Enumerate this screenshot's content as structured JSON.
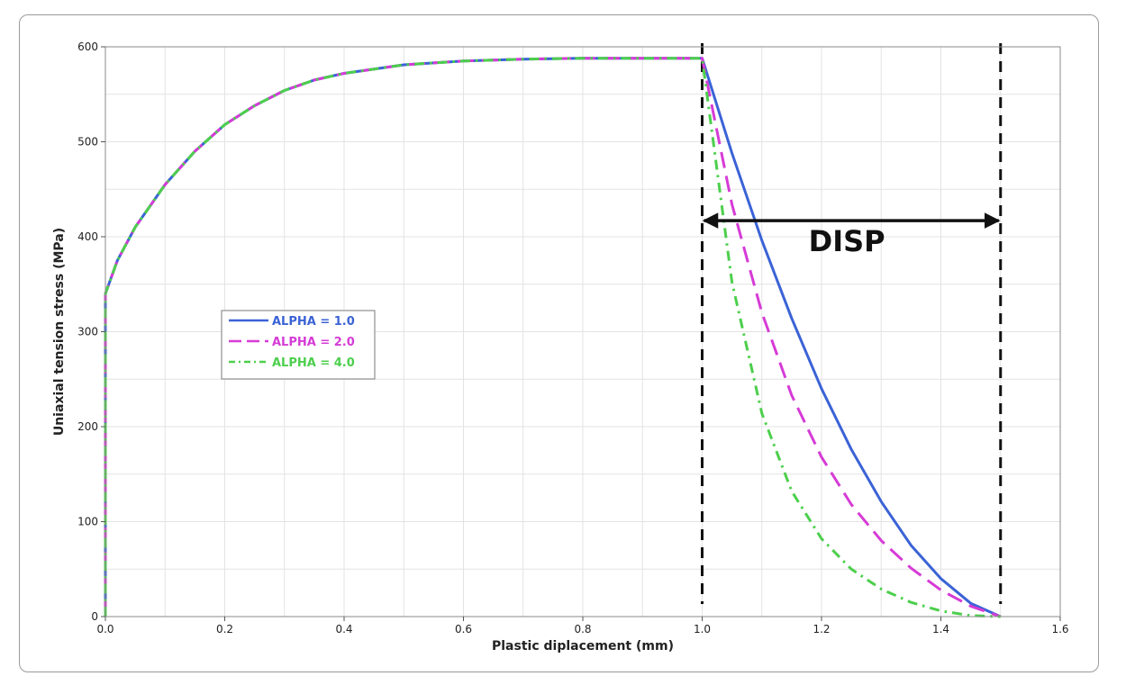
{
  "chart_data": {
    "type": "line",
    "title": "",
    "xlabel": "Plastic diplacement (mm)",
    "ylabel": "Uniaxial tension stress (MPa)",
    "xlim": [
      0,
      1.6
    ],
    "ylim": [
      0,
      600
    ],
    "x_ticks": [
      "0.0",
      "0.2",
      "0.4",
      "0.6",
      "0.8",
      "1.0",
      "1.2",
      "1.4",
      "1.6"
    ],
    "y_ticks": [
      "0",
      "100",
      "200",
      "300",
      "400",
      "500",
      "600"
    ],
    "grid": true,
    "legend_placement": "middle-left",
    "series": [
      {
        "name": "ALPHA = 1.0",
        "color": "#3b63d6",
        "dash": "solid",
        "x": [
          0,
          0,
          0.02,
          0.05,
          0.1,
          0.15,
          0.2,
          0.25,
          0.3,
          0.35,
          0.4,
          0.5,
          0.6,
          0.7,
          0.8,
          0.9,
          1.0,
          1.05,
          1.1,
          1.15,
          1.2,
          1.25,
          1.3,
          1.35,
          1.4,
          1.45,
          1.5
        ],
        "y": [
          0,
          340,
          375,
          410,
          455,
          490,
          518,
          538,
          554,
          565,
          572,
          581,
          585,
          587,
          588,
          588,
          588,
          488,
          396,
          314,
          240,
          176,
          121,
          75,
          40,
          14,
          0
        ]
      },
      {
        "name": "ALPHA = 2.0",
        "color": "#d63bd6",
        "dash": "dashed",
        "x": [
          0,
          0,
          0.02,
          0.05,
          0.1,
          0.15,
          0.2,
          0.25,
          0.3,
          0.35,
          0.4,
          0.5,
          0.6,
          0.7,
          0.8,
          0.9,
          1.0,
          1.05,
          1.1,
          1.15,
          1.2,
          1.25,
          1.3,
          1.35,
          1.4,
          1.45,
          1.5
        ],
        "y": [
          0,
          340,
          375,
          410,
          455,
          490,
          518,
          538,
          554,
          565,
          572,
          581,
          585,
          587,
          588,
          588,
          588,
          434,
          320,
          233,
          168,
          118,
          80,
          51,
          28,
          11,
          0
        ]
      },
      {
        "name": "ALPHA = 4.0",
        "color": "#4ccf4c",
        "dash": "dashdot",
        "x": [
          0,
          0,
          0.02,
          0.05,
          0.1,
          0.15,
          0.2,
          0.25,
          0.3,
          0.35,
          0.4,
          0.5,
          0.6,
          0.7,
          0.8,
          0.9,
          1.0,
          1.05,
          1.1,
          1.15,
          1.2,
          1.25,
          1.3,
          1.35,
          1.4,
          1.45,
          1.5
        ],
        "y": [
          0,
          340,
          375,
          410,
          455,
          490,
          518,
          538,
          554,
          565,
          572,
          581,
          585,
          587,
          588,
          588,
          588,
          352,
          214,
          132,
          82,
          50,
          29,
          15,
          6,
          1,
          0
        ]
      }
    ],
    "reference_lines_x": [
      1.0,
      1.5
    ],
    "annotation": {
      "text": "DISP",
      "arrow_from_x": 1.0,
      "arrow_to_x": 1.5,
      "arrow_y": 417,
      "text_x": 1.25,
      "text_y": 385
    }
  }
}
